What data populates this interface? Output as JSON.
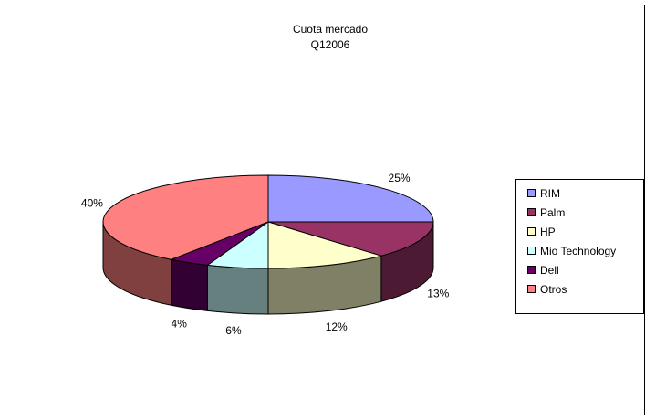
{
  "chart_data": {
    "type": "pie",
    "title_lines": [
      "Cuota mercado",
      "Q12006"
    ],
    "slices": [
      {
        "label": "RIM",
        "value": 25,
        "pct_label": "25%",
        "top_color": "#9999ff",
        "side_color": "#8a8ae0"
      },
      {
        "label": "Palm",
        "value": 13,
        "pct_label": "13%",
        "top_color": "#993366",
        "side_color": "#4d1a33"
      },
      {
        "label": "HP",
        "value": 12,
        "pct_label": "12%",
        "top_color": "#ffffcc",
        "side_color": "#808066"
      },
      {
        "label": "Mio Technology",
        "value": 6,
        "pct_label": "6%",
        "top_color": "#ccffff",
        "side_color": "#668080"
      },
      {
        "label": "Dell",
        "value": 4,
        "pct_label": "4%",
        "top_color": "#660066",
        "side_color": "#330033"
      },
      {
        "label": "Otros",
        "value": 40,
        "pct_label": "40%",
        "top_color": "#ff8080",
        "side_color": "#804040"
      }
    ],
    "legend_position": "right"
  }
}
